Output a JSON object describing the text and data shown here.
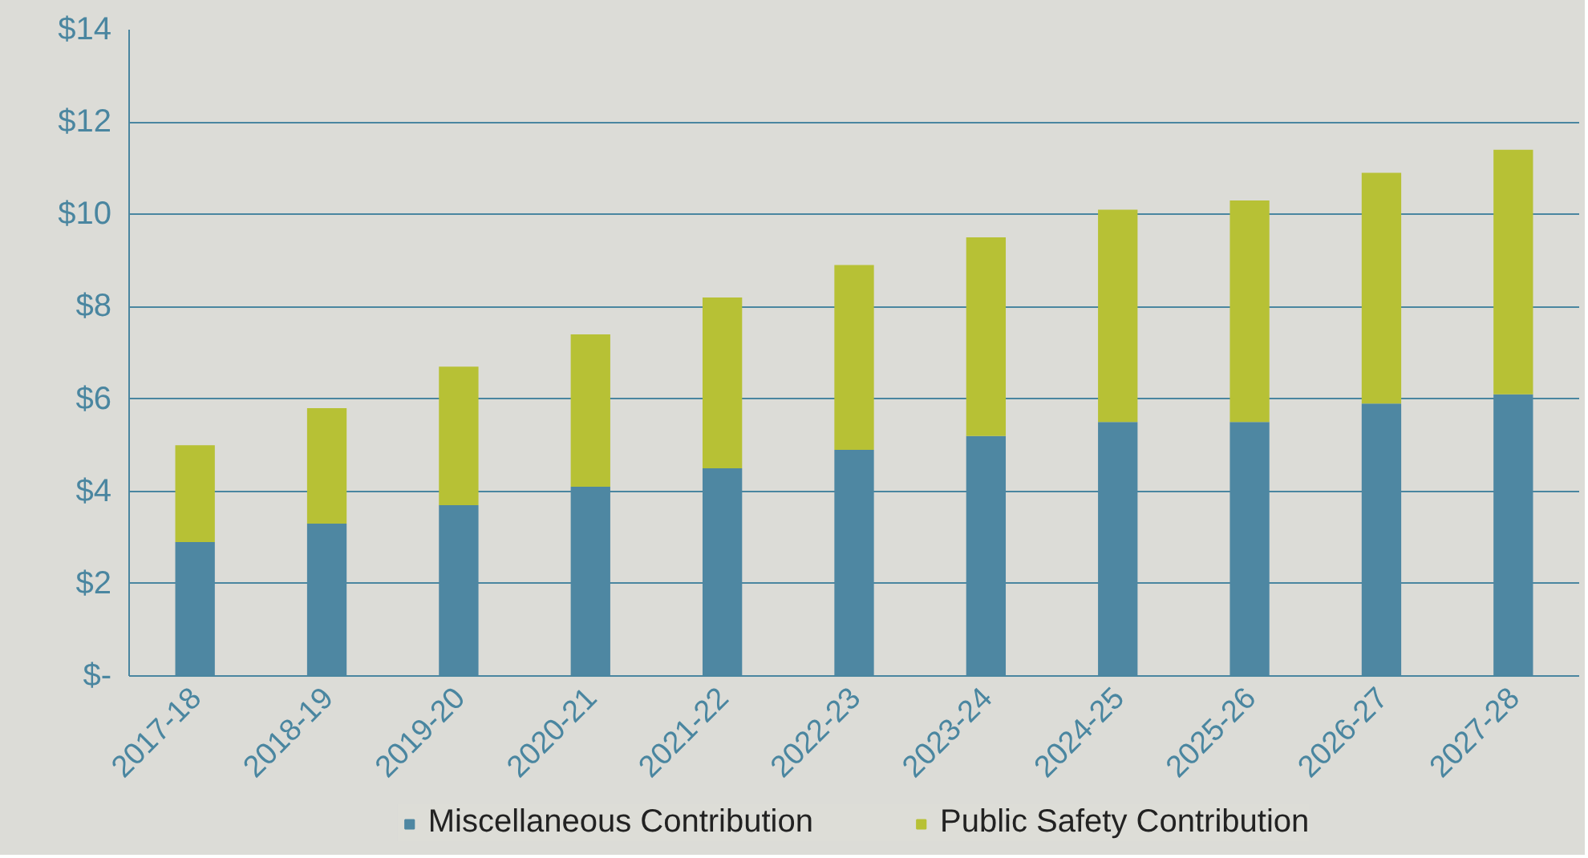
{
  "chart_data": {
    "type": "bar",
    "stacked": true,
    "categories": [
      "2017-18",
      "2018-19",
      "2019-20",
      "2020-21",
      "2021-22",
      "2022-23",
      "2023-24",
      "2024-25",
      "2025-26",
      "2026-27",
      "2027-28"
    ],
    "series": [
      {
        "name": "Miscellaneous Contribution",
        "color": "#4e87a2",
        "values": [
          2.9,
          3.3,
          3.7,
          4.1,
          4.5,
          4.9,
          5.2,
          5.5,
          5.5,
          5.9,
          6.1
        ]
      },
      {
        "name": "Public Safety Contribution",
        "color": "#b7c135",
        "values": [
          2.1,
          2.5,
          3.0,
          3.3,
          3.7,
          4.0,
          4.3,
          4.6,
          4.8,
          5.0,
          5.3
        ]
      }
    ],
    "ylim": [
      0,
      14
    ],
    "yticks": [
      {
        "value": 0,
        "label": "$-"
      },
      {
        "value": 2,
        "label": "$2"
      },
      {
        "value": 4,
        "label": "$4"
      },
      {
        "value": 6,
        "label": "$6"
      },
      {
        "value": 8,
        "label": "$8"
      },
      {
        "value": 10,
        "label": "$10"
      },
      {
        "value": 12,
        "label": "$12"
      },
      {
        "value": 14,
        "label": "$14"
      }
    ],
    "grid": "y",
    "legend": "bottom"
  }
}
